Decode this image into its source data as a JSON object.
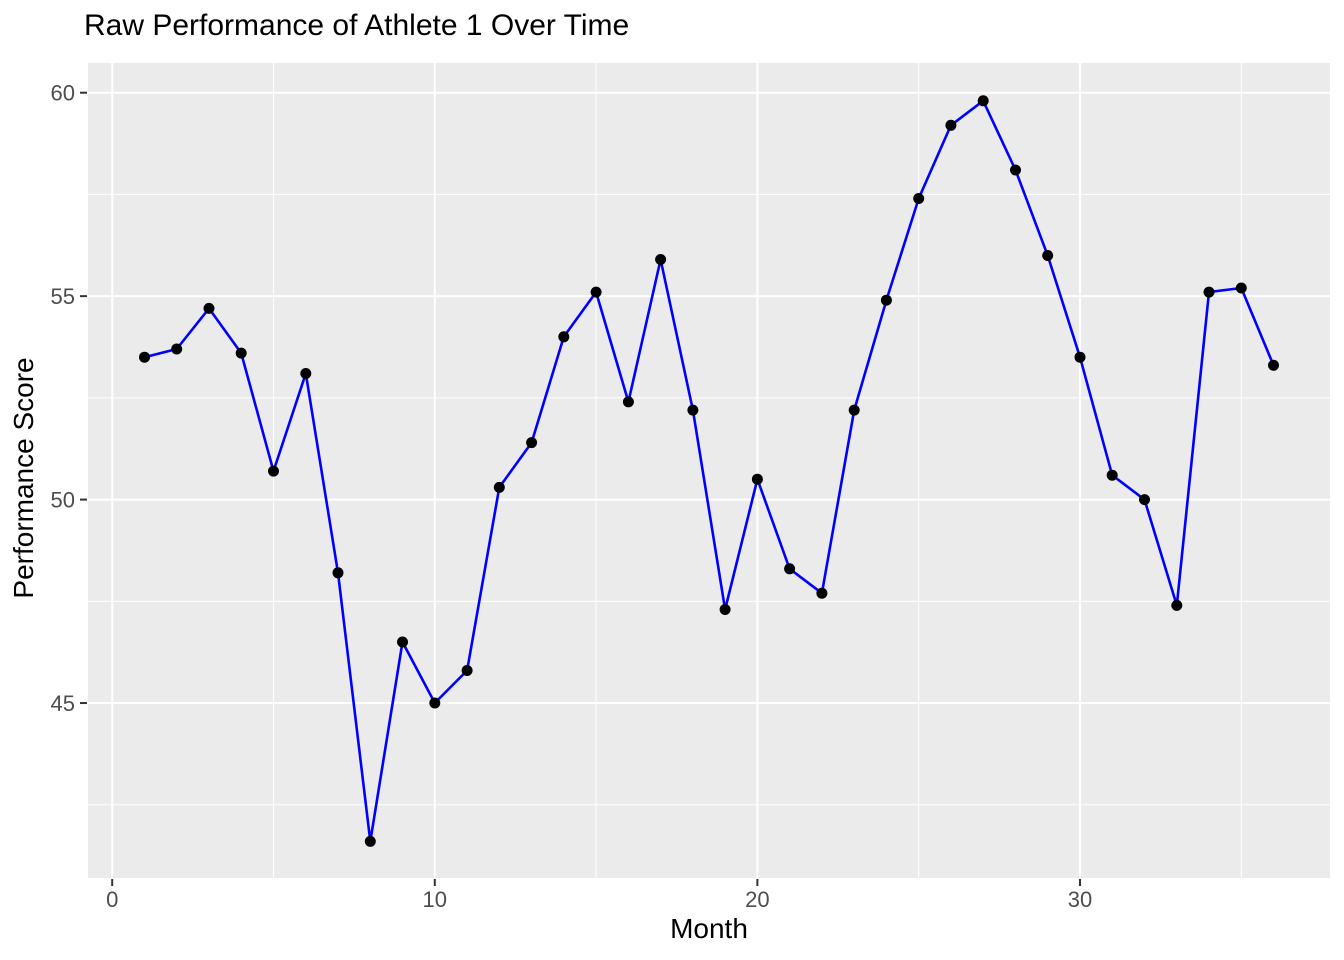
{
  "chart_data": {
    "type": "line",
    "title": "Raw Performance of Athlete 1 Over Time",
    "xlabel": "Month",
    "ylabel": "Performance Score",
    "x": [
      1,
      2,
      3,
      4,
      5,
      6,
      7,
      8,
      9,
      10,
      11,
      12,
      13,
      14,
      15,
      16,
      17,
      18,
      19,
      20,
      21,
      22,
      23,
      24,
      25,
      26,
      27,
      28,
      29,
      30,
      31,
      32,
      33,
      34,
      35,
      36
    ],
    "values": [
      53.5,
      53.7,
      54.7,
      53.6,
      50.7,
      53.1,
      48.2,
      41.6,
      46.5,
      45.0,
      45.8,
      50.3,
      51.4,
      54.0,
      55.1,
      52.4,
      55.9,
      52.2,
      47.3,
      50.5,
      48.3,
      47.7,
      52.2,
      54.9,
      57.4,
      59.2,
      59.8,
      58.1,
      56.0,
      53.5,
      50.6,
      50.0,
      47.4,
      55.1,
      55.2,
      53.3
    ],
    "xlim": [
      -0.75,
      37.75
    ],
    "ylim": [
      40.7,
      60.73
    ],
    "x_ticks": [
      0,
      10,
      20,
      30
    ],
    "x_minor_ticks": [
      5,
      15,
      25,
      35
    ],
    "y_ticks": [
      45,
      50,
      55,
      60
    ],
    "y_minor_ticks": [
      42.5,
      47.5,
      52.5,
      57.5
    ],
    "grid": "on",
    "legend": "none",
    "style": {
      "line_color": "#0000ff",
      "point_color": "#000000",
      "panel_background": "#ebebeb",
      "grid_color": "#ffffff",
      "tick_mark_color": "#333333",
      "tick_label_color": "#4d4d4d",
      "title_color": "#000000",
      "axis_title_color": "#000000",
      "figure_background": "#ffffff"
    }
  }
}
